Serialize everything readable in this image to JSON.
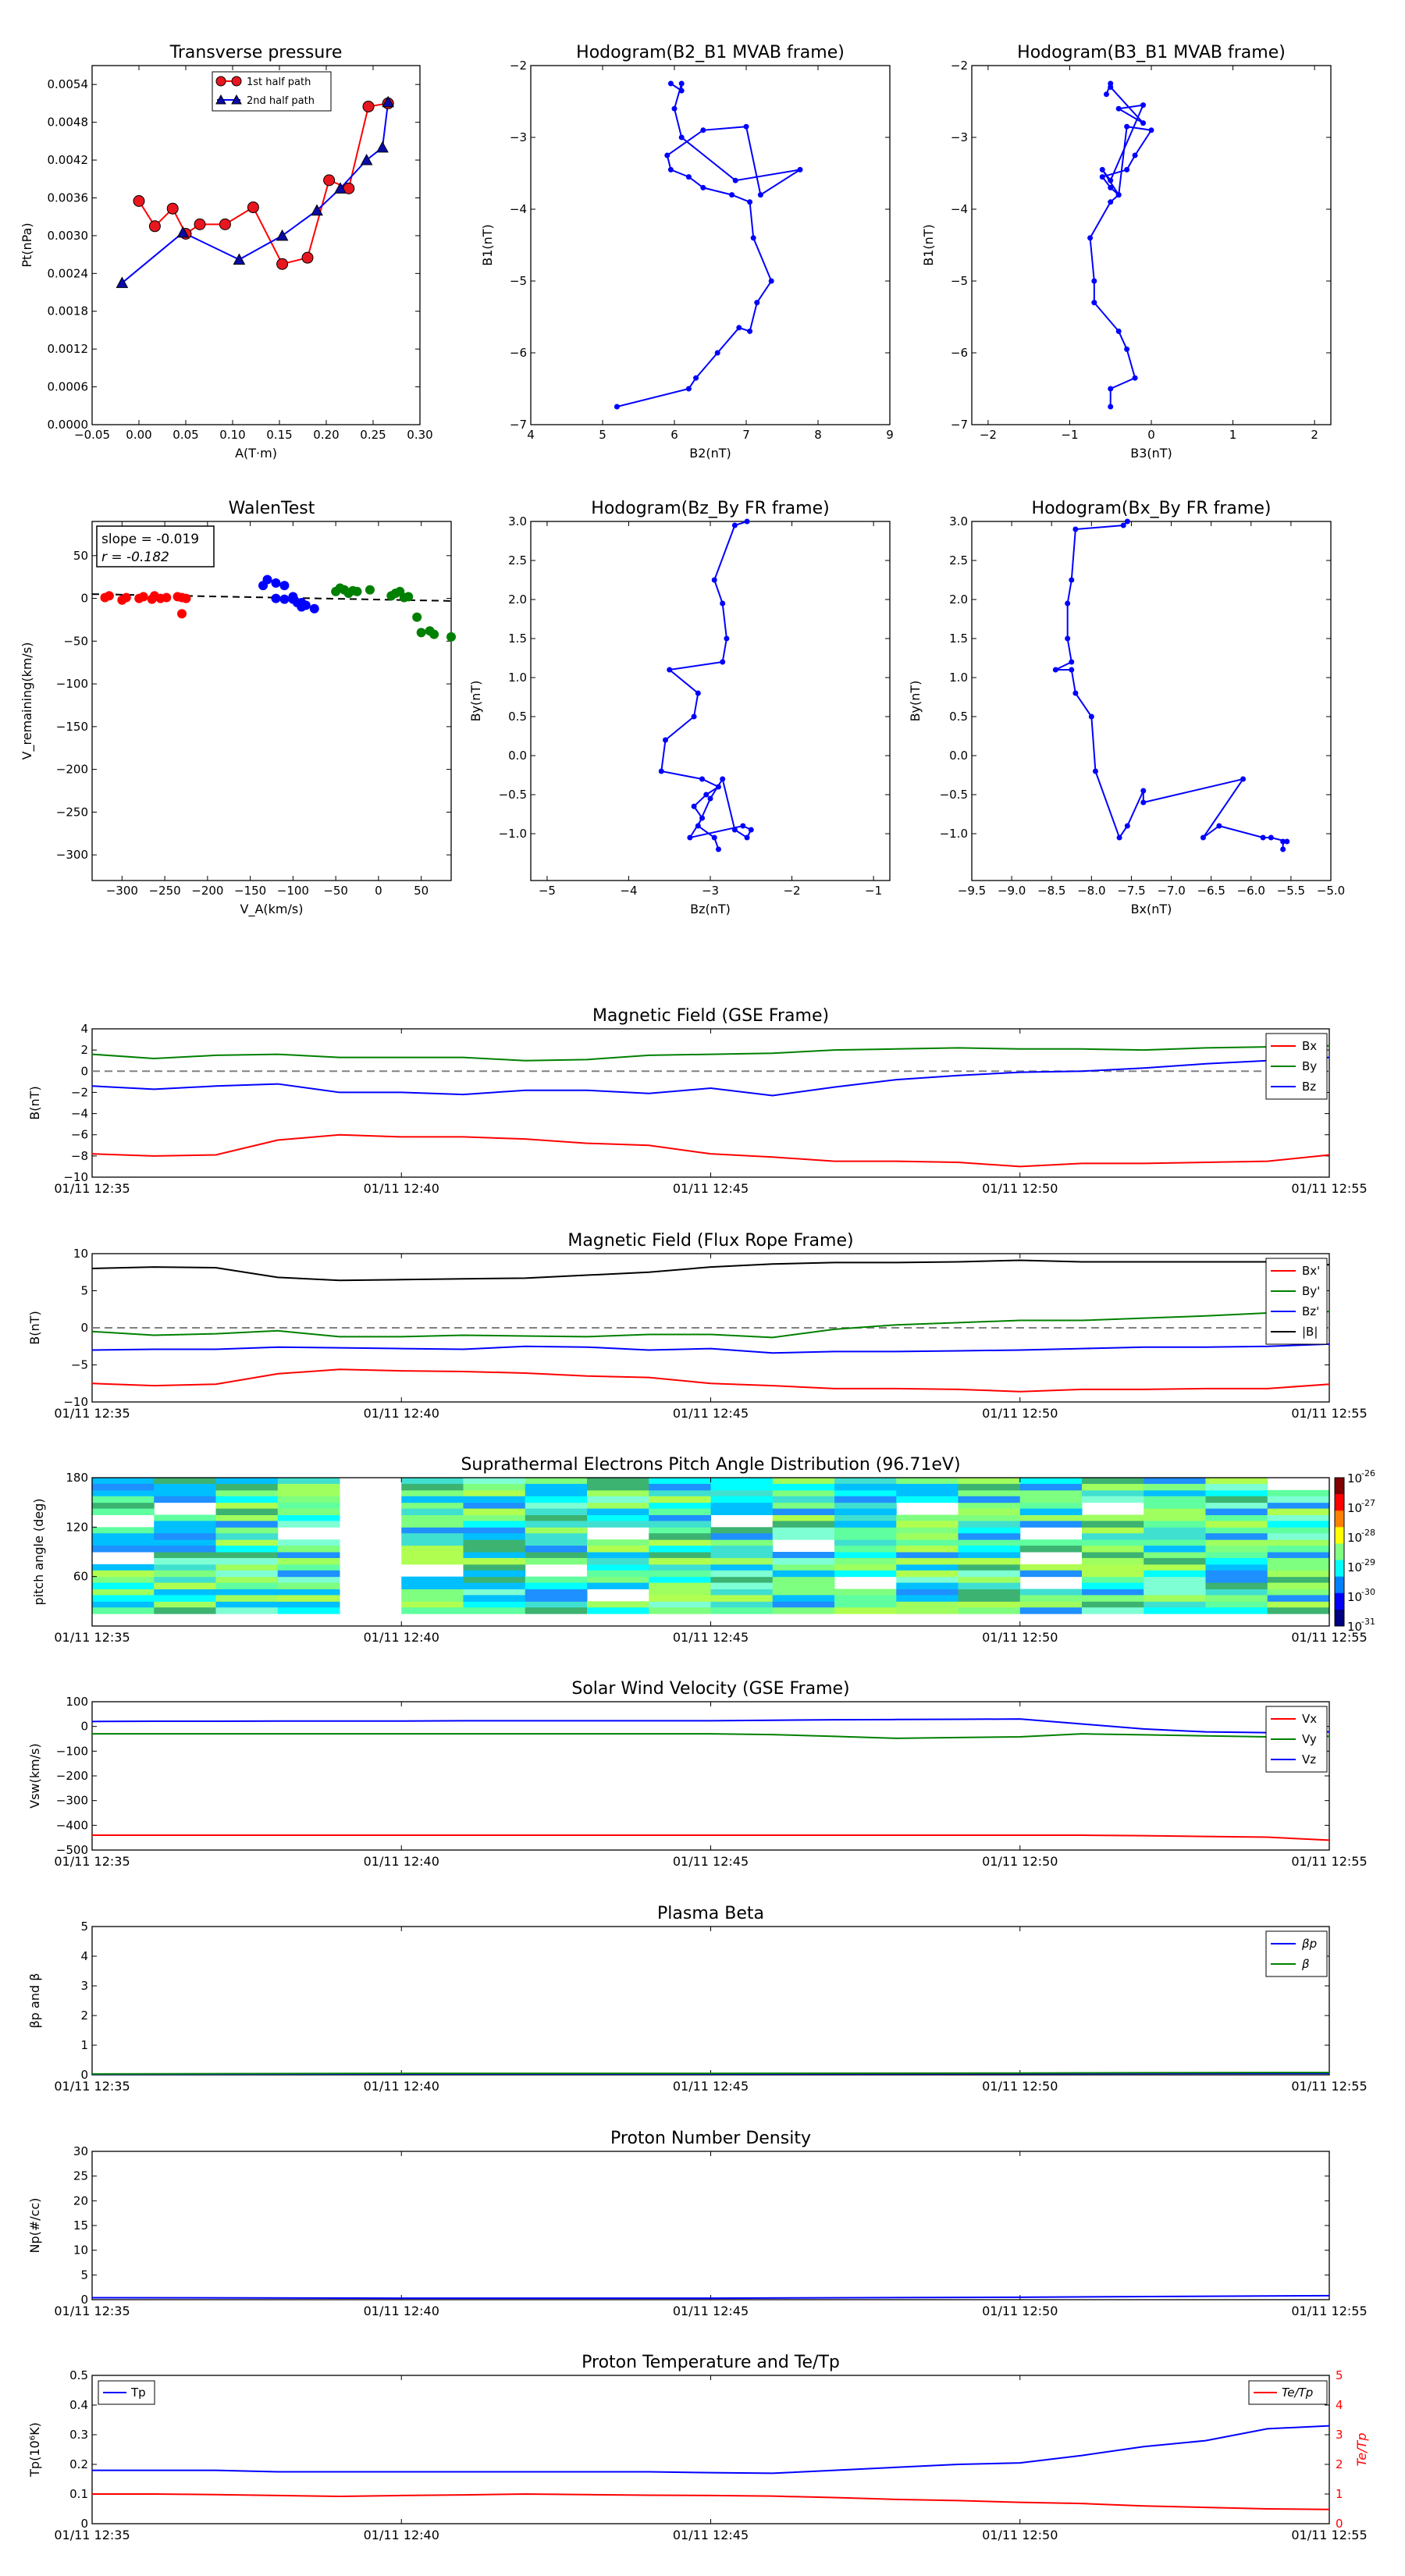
{
  "charts": {
    "tp": {
      "title": "Transverse pressure",
      "xlabel": "A(T·m)",
      "ylabel": "Pt(nPa)",
      "xticks": [
        "−0.05",
        "0.00",
        "0.05",
        "0.10",
        "0.15",
        "0.20",
        "0.25",
        "0.30"
      ],
      "yticks": [
        "0.0000",
        "0.0006",
        "0.0012",
        "0.0018",
        "0.0024",
        "0.0030",
        "0.0036",
        "0.0042",
        "0.0048",
        "0.0054"
      ],
      "legend": [
        "1st half path",
        "2nd half path"
      ]
    },
    "h21": {
      "title": "Hodogram(B2_B1 MVAB frame)",
      "xlabel": "B2(nT)",
      "ylabel": "B1(nT)",
      "xticks": [
        "4",
        "5",
        "6",
        "7",
        "8",
        "9"
      ],
      "yticks": [
        "−7",
        "−6",
        "−5",
        "−4",
        "−3",
        "−2"
      ]
    },
    "h31": {
      "title": "Hodogram(B3_B1 MVAB frame)",
      "xlabel": "B3(nT)",
      "ylabel": "B1(nT)",
      "xticks": [
        "−2",
        "−1",
        "0",
        "1",
        "2"
      ],
      "yticks": [
        "−7",
        "−6",
        "−5",
        "−4",
        "−3",
        "−2"
      ]
    },
    "walen": {
      "title": "WalenTest",
      "xlabel": "V_A(km/s)",
      "ylabel": "V_remaining(km/s)",
      "xticks": [
        "−300",
        "−250",
        "−200",
        "−150",
        "−100",
        "−50",
        "0",
        "50"
      ],
      "yticks": [
        "−300",
        "−250",
        "−200",
        "−150",
        "−100",
        "−50",
        "0",
        "50"
      ],
      "slope_text": "slope = -0.019",
      "r_text": "r = -0.182"
    },
    "hzy": {
      "title": "Hodogram(Bz_By FR frame)",
      "xlabel": "Bz(nT)",
      "ylabel": "By(nT)",
      "xticks": [
        "−5",
        "−4",
        "−3",
        "−2",
        "−1"
      ],
      "yticks": [
        "−1.0",
        "−0.5",
        "0.0",
        "0.5",
        "1.0",
        "1.5",
        "2.0",
        "2.5",
        "3.0"
      ]
    },
    "hxy": {
      "title": "Hodogram(Bx_By FR frame)",
      "xlabel": "Bx(nT)",
      "ylabel": "By(nT)",
      "xticks": [
        "−9.5",
        "−9.0",
        "−8.5",
        "−8.0",
        "−7.5",
        "−7.0",
        "−6.5",
        "−6.0",
        "−5.5",
        "−5.0"
      ],
      "yticks": [
        "−1.0",
        "−0.5",
        "0.0",
        "0.5",
        "1.0",
        "1.5",
        "2.0",
        "2.5",
        "3.0"
      ]
    },
    "time_ticks": [
      "01/11 12:35",
      "01/11 12:40",
      "01/11 12:45",
      "01/11 12:50",
      "01/11 12:55"
    ],
    "bgse": {
      "title": "Magnetic Field (GSE Frame)",
      "ylabel": "B(nT)",
      "yticks": [
        "−10",
        "−8",
        "−6",
        "−4",
        "−2",
        "0",
        "2",
        "4"
      ],
      "legend": [
        "Bx",
        "By",
        "Bz"
      ]
    },
    "bfr": {
      "title": "Magnetic Field (Flux Rope Frame)",
      "ylabel": "B(nT)",
      "yticks": [
        "−10",
        "−5",
        "0",
        "5",
        "10"
      ],
      "legend": [
        "Bx'",
        "By'",
        "Bz'",
        "|B|"
      ]
    },
    "pad": {
      "title": "Suprathermal Electrons Pitch Angle Distribution (96.71eV)",
      "ylabel": "pitch angle (deg)",
      "yticks": [
        "60",
        "120",
        "180"
      ],
      "cbar": [
        "10",
        "10",
        "10",
        "10",
        "10",
        "10"
      ],
      "cbar_exp": [
        "-26",
        "-27",
        "-28",
        "-29",
        "-30",
        "-31"
      ]
    },
    "vsw": {
      "title": "Solar Wind Velocity (GSE Frame)",
      "ylabel": "Vsw(km/s)",
      "yticks": [
        "−500",
        "−400",
        "−300",
        "−200",
        "−100",
        "0",
        "100"
      ],
      "legend": [
        "Vx",
        "Vy",
        "Vz"
      ]
    },
    "beta": {
      "title": "Plasma Beta",
      "ylabel": "βp and β",
      "yticks": [
        "0",
        "1",
        "2",
        "3",
        "4",
        "5"
      ],
      "legend": [
        "βp",
        "β"
      ]
    },
    "np": {
      "title": "Proton Number Density",
      "ylabel": "Np(#/cc)",
      "yticks": [
        "0",
        "5",
        "10",
        "15",
        "20",
        "25",
        "30"
      ]
    },
    "temp": {
      "title": "Proton Temperature and Te/Tp",
      "ylabel": "Tp(10⁶K)",
      "ylabel_right": "Te/Tp",
      "yticks": [
        "0",
        "0.1",
        "0.2",
        "0.3",
        "0.4",
        "0.5"
      ],
      "yticks_right": [
        "0",
        "1",
        "2",
        "3",
        "4",
        "5"
      ],
      "legend_left": "Tp",
      "legend_right": "Te/Tp"
    }
  },
  "colors": {
    "red": "#ff0000",
    "green": "#008000",
    "blue": "#0000ff",
    "black": "#000000",
    "pt_red_face": "#e8171f",
    "pt_blue_face": "#0a0aa8",
    "dash": "#808080"
  },
  "chart_data": [
    {
      "type": "line",
      "name": "tp_first_half",
      "x": [
        0.0,
        0.017,
        0.036,
        0.05,
        0.065,
        0.092,
        0.122,
        0.153,
        0.18,
        0.203,
        0.224,
        0.245,
        0.266
      ],
      "y": [
        0.00355,
        0.00315,
        0.00343,
        0.00303,
        0.00318,
        0.00318,
        0.00345,
        0.00255,
        0.00265,
        0.00388,
        0.00375,
        0.00505,
        0.0051
      ]
    },
    {
      "type": "line",
      "name": "tp_second_half",
      "x": [
        -0.018,
        0.047,
        0.107,
        0.153,
        0.19,
        0.215,
        0.243,
        0.26,
        0.266
      ],
      "y": [
        0.00225,
        0.00305,
        0.00262,
        0.003,
        0.0034,
        0.00375,
        0.0042,
        0.0044,
        0.00512
      ]
    },
    {
      "type": "line",
      "name": "hodo_b2_b1",
      "x": [
        5.2,
        6.2,
        6.3,
        6.6,
        6.9,
        7.05,
        7.15,
        7.35,
        7.1,
        7.05,
        6.8,
        6.4,
        6.2,
        5.95,
        5.9,
        6.4,
        7.0,
        7.2,
        7.75,
        6.85,
        6.1,
        6.0,
        6.1,
        6.1,
        5.95
      ],
      "y": [
        -6.75,
        -6.5,
        -6.35,
        -6.0,
        -5.65,
        -5.7,
        -5.3,
        -5.0,
        -4.4,
        -3.9,
        -3.8,
        -3.7,
        -3.55,
        -3.45,
        -3.25,
        -2.9,
        -2.85,
        -3.8,
        -3.45,
        -3.6,
        -3.0,
        -2.6,
        -2.25,
        -2.35,
        -2.25
      ]
    },
    {
      "type": "line",
      "name": "hodo_b3_b1",
      "x": [
        -0.5,
        -0.5,
        -0.2,
        -0.3,
        -0.4,
        -0.7,
        -0.7,
        -0.75,
        -0.5,
        -0.4,
        -0.5,
        -0.6,
        -0.3,
        -0.2,
        0.0,
        -0.3,
        -0.4,
        -0.6,
        -0.5,
        -0.1,
        -0.4,
        -0.1,
        -0.5,
        -0.5,
        -0.55
      ],
      "y": [
        -6.75,
        -6.5,
        -6.35,
        -5.95,
        -5.7,
        -5.3,
        -5.0,
        -4.4,
        -3.9,
        -3.8,
        -3.7,
        -3.55,
        -3.45,
        -3.25,
        -2.9,
        -2.85,
        -3.8,
        -3.45,
        -3.6,
        -2.55,
        -2.6,
        -2.8,
        -2.3,
        -2.25,
        -2.4
      ]
    },
    {
      "type": "scatter",
      "name": "walen_red",
      "x": [
        -320,
        -315,
        -300,
        -295,
        -280,
        -275,
        -265,
        -262,
        -255,
        -248,
        -235,
        -230,
        -225,
        -230
      ],
      "y": [
        1,
        3,
        -2,
        1,
        0,
        2,
        -1,
        3,
        0,
        1,
        2,
        -18,
        0,
        1
      ]
    },
    {
      "type": "scatter",
      "name": "walen_blue",
      "x": [
        -135,
        -130,
        -120,
        -110,
        -100,
        -110,
        -95,
        -90,
        -85,
        -75,
        -120,
        -100,
        -90
      ],
      "y": [
        15,
        22,
        18,
        15,
        2,
        -1,
        -5,
        -10,
        -8,
        -12,
        0,
        -1,
        -5
      ]
    },
    {
      "type": "scatter",
      "name": "walen_green",
      "x": [
        -50,
        -45,
        -40,
        -35,
        -30,
        -25,
        -10,
        15,
        20,
        25,
        30,
        35,
        45,
        50,
        60,
        65,
        85
      ],
      "y": [
        8,
        12,
        10,
        6,
        9,
        8,
        10,
        3,
        6,
        8,
        1,
        2,
        -22,
        -40,
        -38,
        -42,
        -45
      ]
    },
    {
      "type": "line",
      "name": "walen_fit",
      "x": [
        -335,
        85
      ],
      "y": [
        5,
        -3
      ]
    },
    {
      "type": "line",
      "name": "hodo_bz_by",
      "x": [
        -2.9,
        -2.95,
        -3.15,
        -3.0,
        -2.85,
        -2.7,
        -2.55,
        -2.5,
        -2.6,
        -3.25,
        -3.1,
        -3.2,
        -3.05,
        -2.9,
        -3.1,
        -3.6,
        -3.55,
        -3.2,
        -3.15,
        -3.5,
        -2.85,
        -2.8,
        -2.85,
        -2.95,
        -2.7,
        -2.55
      ],
      "y": [
        -1.2,
        -1.05,
        -0.9,
        -0.55,
        -0.3,
        -0.95,
        -1.05,
        -0.95,
        -0.9,
        -1.05,
        -0.8,
        -0.65,
        -0.5,
        -0.4,
        -0.3,
        -0.2,
        0.2,
        0.5,
        0.8,
        1.1,
        1.2,
        1.5,
        1.95,
        2.25,
        2.95,
        3.0
      ]
    },
    {
      "type": "line",
      "name": "hodo_bx_by",
      "x": [
        -5.6,
        -5.6,
        -5.55,
        -5.75,
        -5.85,
        -6.4,
        -6.6,
        -6.1,
        -7.35,
        -7.35,
        -7.55,
        -7.65,
        -7.95,
        -8.0,
        -8.2,
        -8.25,
        -8.45,
        -8.25,
        -8.3,
        -8.3,
        -8.25,
        -8.2,
        -7.6,
        -7.55
      ],
      "y": [
        -1.2,
        -1.1,
        -1.1,
        -1.05,
        -1.05,
        -0.9,
        -1.05,
        -0.3,
        -0.6,
        -0.45,
        -0.9,
        -1.05,
        -0.2,
        0.5,
        0.8,
        1.1,
        1.1,
        1.2,
        1.5,
        1.95,
        2.25,
        2.9,
        2.95,
        3.0
      ]
    },
    {
      "type": "line",
      "name": "b_gse",
      "x": [
        0,
        1,
        2,
        3,
        4,
        5,
        6,
        7,
        8,
        9,
        10,
        11,
        12,
        13,
        14,
        15,
        16,
        17,
        18,
        19,
        20
      ],
      "series": [
        {
          "name": "Bx",
          "values": [
            -7.8,
            -8.0,
            -7.9,
            -6.5,
            -6.0,
            -6.2,
            -6.2,
            -6.4,
            -6.8,
            -7.0,
            -7.8,
            -8.1,
            -8.5,
            -8.5,
            -8.6,
            -9.0,
            -8.7,
            -8.7,
            -8.6,
            -8.5,
            -7.9
          ]
        },
        {
          "name": "By",
          "values": [
            1.6,
            1.2,
            1.5,
            1.6,
            1.3,
            1.3,
            1.3,
            1.0,
            1.1,
            1.5,
            1.6,
            1.7,
            2.0,
            2.1,
            2.2,
            2.1,
            2.1,
            2.0,
            2.2,
            2.3,
            2.4
          ]
        },
        {
          "name": "Bz",
          "values": [
            -1.4,
            -1.7,
            -1.4,
            -1.2,
            -2.0,
            -2.0,
            -2.2,
            -1.8,
            -1.8,
            -2.1,
            -1.6,
            -2.3,
            -1.5,
            -0.8,
            -0.4,
            -0.1,
            0.0,
            0.3,
            0.7,
            1.0,
            1.3
          ]
        }
      ]
    },
    {
      "type": "line",
      "name": "b_fr",
      "x": [
        0,
        1,
        2,
        3,
        4,
        5,
        6,
        7,
        8,
        9,
        10,
        11,
        12,
        13,
        14,
        15,
        16,
        17,
        18,
        19,
        20
      ],
      "series": [
        {
          "name": "Bx'",
          "values": [
            -7.5,
            -7.8,
            -7.6,
            -6.2,
            -5.6,
            -5.8,
            -5.9,
            -6.1,
            -6.5,
            -6.7,
            -7.5,
            -7.8,
            -8.2,
            -8.2,
            -8.3,
            -8.6,
            -8.3,
            -8.3,
            -8.2,
            -8.2,
            -7.6
          ]
        },
        {
          "name": "By'",
          "values": [
            -0.5,
            -1.0,
            -0.8,
            -0.4,
            -1.2,
            -1.2,
            -1.0,
            -1.1,
            -1.2,
            -0.9,
            -0.9,
            -1.3,
            -0.2,
            0.4,
            0.7,
            1.0,
            1.0,
            1.3,
            1.6,
            2.0,
            2.2
          ]
        },
        {
          "name": "Bz'",
          "values": [
            -3.0,
            -2.9,
            -2.9,
            -2.6,
            -2.7,
            -2.8,
            -2.9,
            -2.5,
            -2.6,
            -3.0,
            -2.8,
            -3.4,
            -3.2,
            -3.2,
            -3.1,
            -3.0,
            -2.8,
            -2.6,
            -2.6,
            -2.5,
            -2.2
          ]
        },
        {
          "name": "|B|",
          "values": [
            8.0,
            8.2,
            8.1,
            6.8,
            6.4,
            6.5,
            6.6,
            6.7,
            7.1,
            7.5,
            8.2,
            8.6,
            8.8,
            8.8,
            8.9,
            9.1,
            8.9,
            8.9,
            8.9,
            8.9,
            8.5
          ]
        }
      ]
    },
    {
      "type": "heatmap",
      "name": "pad",
      "x_count": 20,
      "y_bins": [
        0,
        15,
        30,
        45,
        60,
        75,
        90,
        105,
        120,
        135,
        150,
        165,
        180
      ],
      "z_log10_range": [
        -31,
        -26
      ]
    },
    {
      "type": "line",
      "name": "vsw",
      "x": [
        0,
        1,
        2,
        3,
        4,
        5,
        6,
        7,
        8,
        9,
        10,
        11,
        12,
        13,
        14,
        15,
        16,
        17,
        18,
        19,
        20
      ],
      "series": [
        {
          "name": "Vx",
          "values": [
            -440,
            -440,
            -440,
            -440,
            -440,
            -440,
            -440,
            -440,
            -440,
            -440,
            -440,
            -440,
            -440,
            -440,
            -440,
            -440,
            -440,
            -442,
            -445,
            -448,
            -460
          ]
        },
        {
          "name": "Vy",
          "values": [
            -30,
            -30,
            -30,
            -30,
            -30,
            -30,
            -30,
            -30,
            -30,
            -30,
            -30,
            -33,
            -40,
            -48,
            -45,
            -42,
            -30,
            -34,
            -38,
            -42,
            -40
          ]
        },
        {
          "name": "Vz",
          "values": [
            20,
            21,
            21,
            22,
            22,
            22,
            23,
            23,
            23,
            23,
            23,
            25,
            27,
            28,
            29,
            30,
            10,
            -10,
            -22,
            -25,
            -22
          ]
        }
      ]
    },
    {
      "type": "line",
      "name": "beta",
      "x": [
        0,
        5,
        10,
        15,
        20
      ],
      "series": [
        {
          "name": "βp",
          "values": [
            0.02,
            0.03,
            0.03,
            0.04,
            0.05
          ]
        },
        {
          "name": "β",
          "values": [
            0.03,
            0.05,
            0.05,
            0.06,
            0.08
          ]
        }
      ]
    },
    {
      "type": "line",
      "name": "np",
      "x": [
        0,
        5,
        10,
        15,
        20
      ],
      "series": [
        {
          "name": "Np",
          "values": [
            0.4,
            0.3,
            0.3,
            0.5,
            0.8
          ]
        }
      ]
    },
    {
      "type": "line",
      "name": "temp",
      "x": [
        0,
        1,
        2,
        3,
        4,
        5,
        6,
        7,
        8,
        9,
        10,
        11,
        12,
        13,
        14,
        15,
        16,
        17,
        18,
        19,
        20
      ],
      "series": [
        {
          "name": "Tp",
          "values": [
            0.18,
            0.18,
            0.18,
            0.175,
            0.175,
            0.175,
            0.175,
            0.175,
            0.175,
            0.175,
            0.172,
            0.17,
            0.18,
            0.19,
            0.2,
            0.205,
            0.23,
            0.26,
            0.28,
            0.32,
            0.33
          ]
        },
        {
          "name": "Te/Tp",
          "values": [
            1.0,
            1.0,
            0.98,
            0.95,
            0.92,
            0.95,
            0.97,
            1.0,
            0.98,
            0.96,
            0.95,
            0.93,
            0.88,
            0.82,
            0.78,
            0.72,
            0.68,
            0.6,
            0.55,
            0.5,
            0.48
          ]
        }
      ]
    }
  ]
}
